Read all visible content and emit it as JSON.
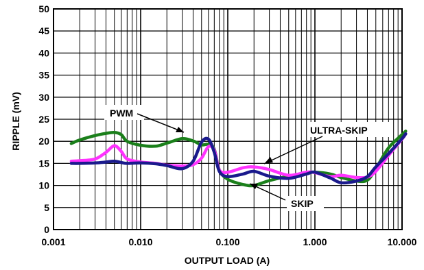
{
  "chart_data": {
    "type": "line",
    "xlabel": "OUTPUT LOAD (A)",
    "ylabel": "RIPPLE (mV)",
    "xscale": "log",
    "xlim": [
      0.001,
      10.0
    ],
    "ylim": [
      0,
      50
    ],
    "grid": true,
    "x_tick_labels": [
      "0.001",
      "0.010",
      "0.100",
      "1.000",
      "10.000"
    ],
    "y_tick_labels": [
      "0",
      "5",
      "10",
      "15",
      "20",
      "25",
      "30",
      "35",
      "40",
      "45",
      "50"
    ],
    "colors": {
      "PWM": "#1a7f1a",
      "ULTRA-SKIP": "#ff33ff",
      "SKIP": "#1a1a8c"
    },
    "annotations": [
      {
        "text": "PWM",
        "series": "PWM"
      },
      {
        "text": "ULTRA-SKIP",
        "series": "ULTRA-SKIP"
      },
      {
        "text": "SKIP",
        "series": "SKIP"
      }
    ],
    "series": [
      {
        "name": "PWM",
        "x": [
          0.0016,
          0.002,
          0.003,
          0.004,
          0.005,
          0.006,
          0.007,
          0.01,
          0.015,
          0.02,
          0.03,
          0.04,
          0.05,
          0.06,
          0.07,
          0.08,
          0.1,
          0.15,
          0.2,
          0.3,
          0.5,
          0.8,
          1.0,
          1.5,
          2.0,
          3.0,
          4.0,
          5.0,
          7.0,
          10.0,
          11.0
        ],
        "y": [
          19.5,
          20.3,
          21.3,
          21.8,
          22.0,
          21.5,
          20.0,
          19.1,
          18.9,
          19.6,
          20.6,
          20.1,
          19.2,
          19.3,
          18.2,
          13.5,
          11.4,
          10.2,
          10.0,
          11.1,
          12.1,
          12.8,
          13.0,
          12.6,
          11.8,
          11.0,
          11.2,
          13.8,
          18.5,
          21.5,
          22.3
        ]
      },
      {
        "name": "ULTRA-SKIP",
        "x": [
          0.0016,
          0.002,
          0.003,
          0.004,
          0.005,
          0.006,
          0.007,
          0.01,
          0.015,
          0.02,
          0.03,
          0.04,
          0.05,
          0.06,
          0.07,
          0.08,
          0.1,
          0.15,
          0.2,
          0.3,
          0.5,
          0.8,
          1.0,
          1.5,
          2.0,
          3.0,
          4.0,
          5.0,
          7.0,
          10.0,
          11.0
        ],
        "y": [
          15.5,
          15.6,
          16.0,
          17.5,
          19.0,
          17.7,
          16.0,
          15.3,
          15.0,
          14.6,
          14.4,
          14.7,
          16.2,
          18.8,
          18.0,
          13.5,
          13.0,
          14.0,
          14.2,
          13.6,
          12.3,
          13.0,
          12.9,
          12.0,
          12.3,
          11.8,
          11.9,
          13.2,
          16.8,
          20.5,
          21.7
        ]
      },
      {
        "name": "SKIP",
        "x": [
          0.0016,
          0.002,
          0.003,
          0.004,
          0.005,
          0.006,
          0.007,
          0.01,
          0.015,
          0.02,
          0.03,
          0.04,
          0.05,
          0.06,
          0.07,
          0.08,
          0.1,
          0.15,
          0.2,
          0.3,
          0.5,
          0.8,
          1.0,
          1.5,
          2.0,
          3.0,
          4.0,
          5.0,
          7.0,
          10.0,
          11.0
        ],
        "y": [
          15.0,
          15.0,
          15.1,
          15.3,
          15.5,
          15.2,
          15.0,
          15.1,
          14.9,
          14.5,
          13.8,
          15.5,
          19.8,
          20.5,
          17.5,
          13.2,
          12.0,
          12.6,
          13.2,
          12.1,
          11.6,
          12.6,
          13.0,
          11.7,
          10.6,
          11.0,
          12.0,
          14.2,
          17.2,
          20.6,
          21.7
        ]
      }
    ]
  }
}
